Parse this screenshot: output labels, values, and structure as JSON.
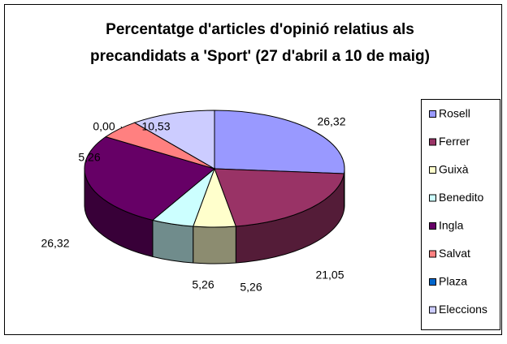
{
  "chart_data": {
    "type": "pie3d",
    "title": [
      "Percentatge d'articles d'opinió relatius als",
      "precandidats a 'Sport' (27 d'abril a 10 de maig)"
    ],
    "categories": [
      "Rosell",
      "Ferrer",
      "Guixà",
      "Benedito",
      "Ingla",
      "Salvat",
      "Plaza",
      "Eleccions"
    ],
    "values": [
      26.32,
      21.05,
      5.26,
      5.26,
      26.32,
      5.26,
      0.0,
      10.53
    ],
    "value_labels": [
      "26,32",
      "21,05",
      "5,26",
      "5,26",
      "26,32",
      "5,26",
      "0,00",
      "10,53"
    ],
    "colors": [
      "#9999ff",
      "#993366",
      "#ffffcc",
      "#ccffff",
      "#660066",
      "#ff8080",
      "#0066cc",
      "#ccccff"
    ],
    "legend": "right"
  }
}
